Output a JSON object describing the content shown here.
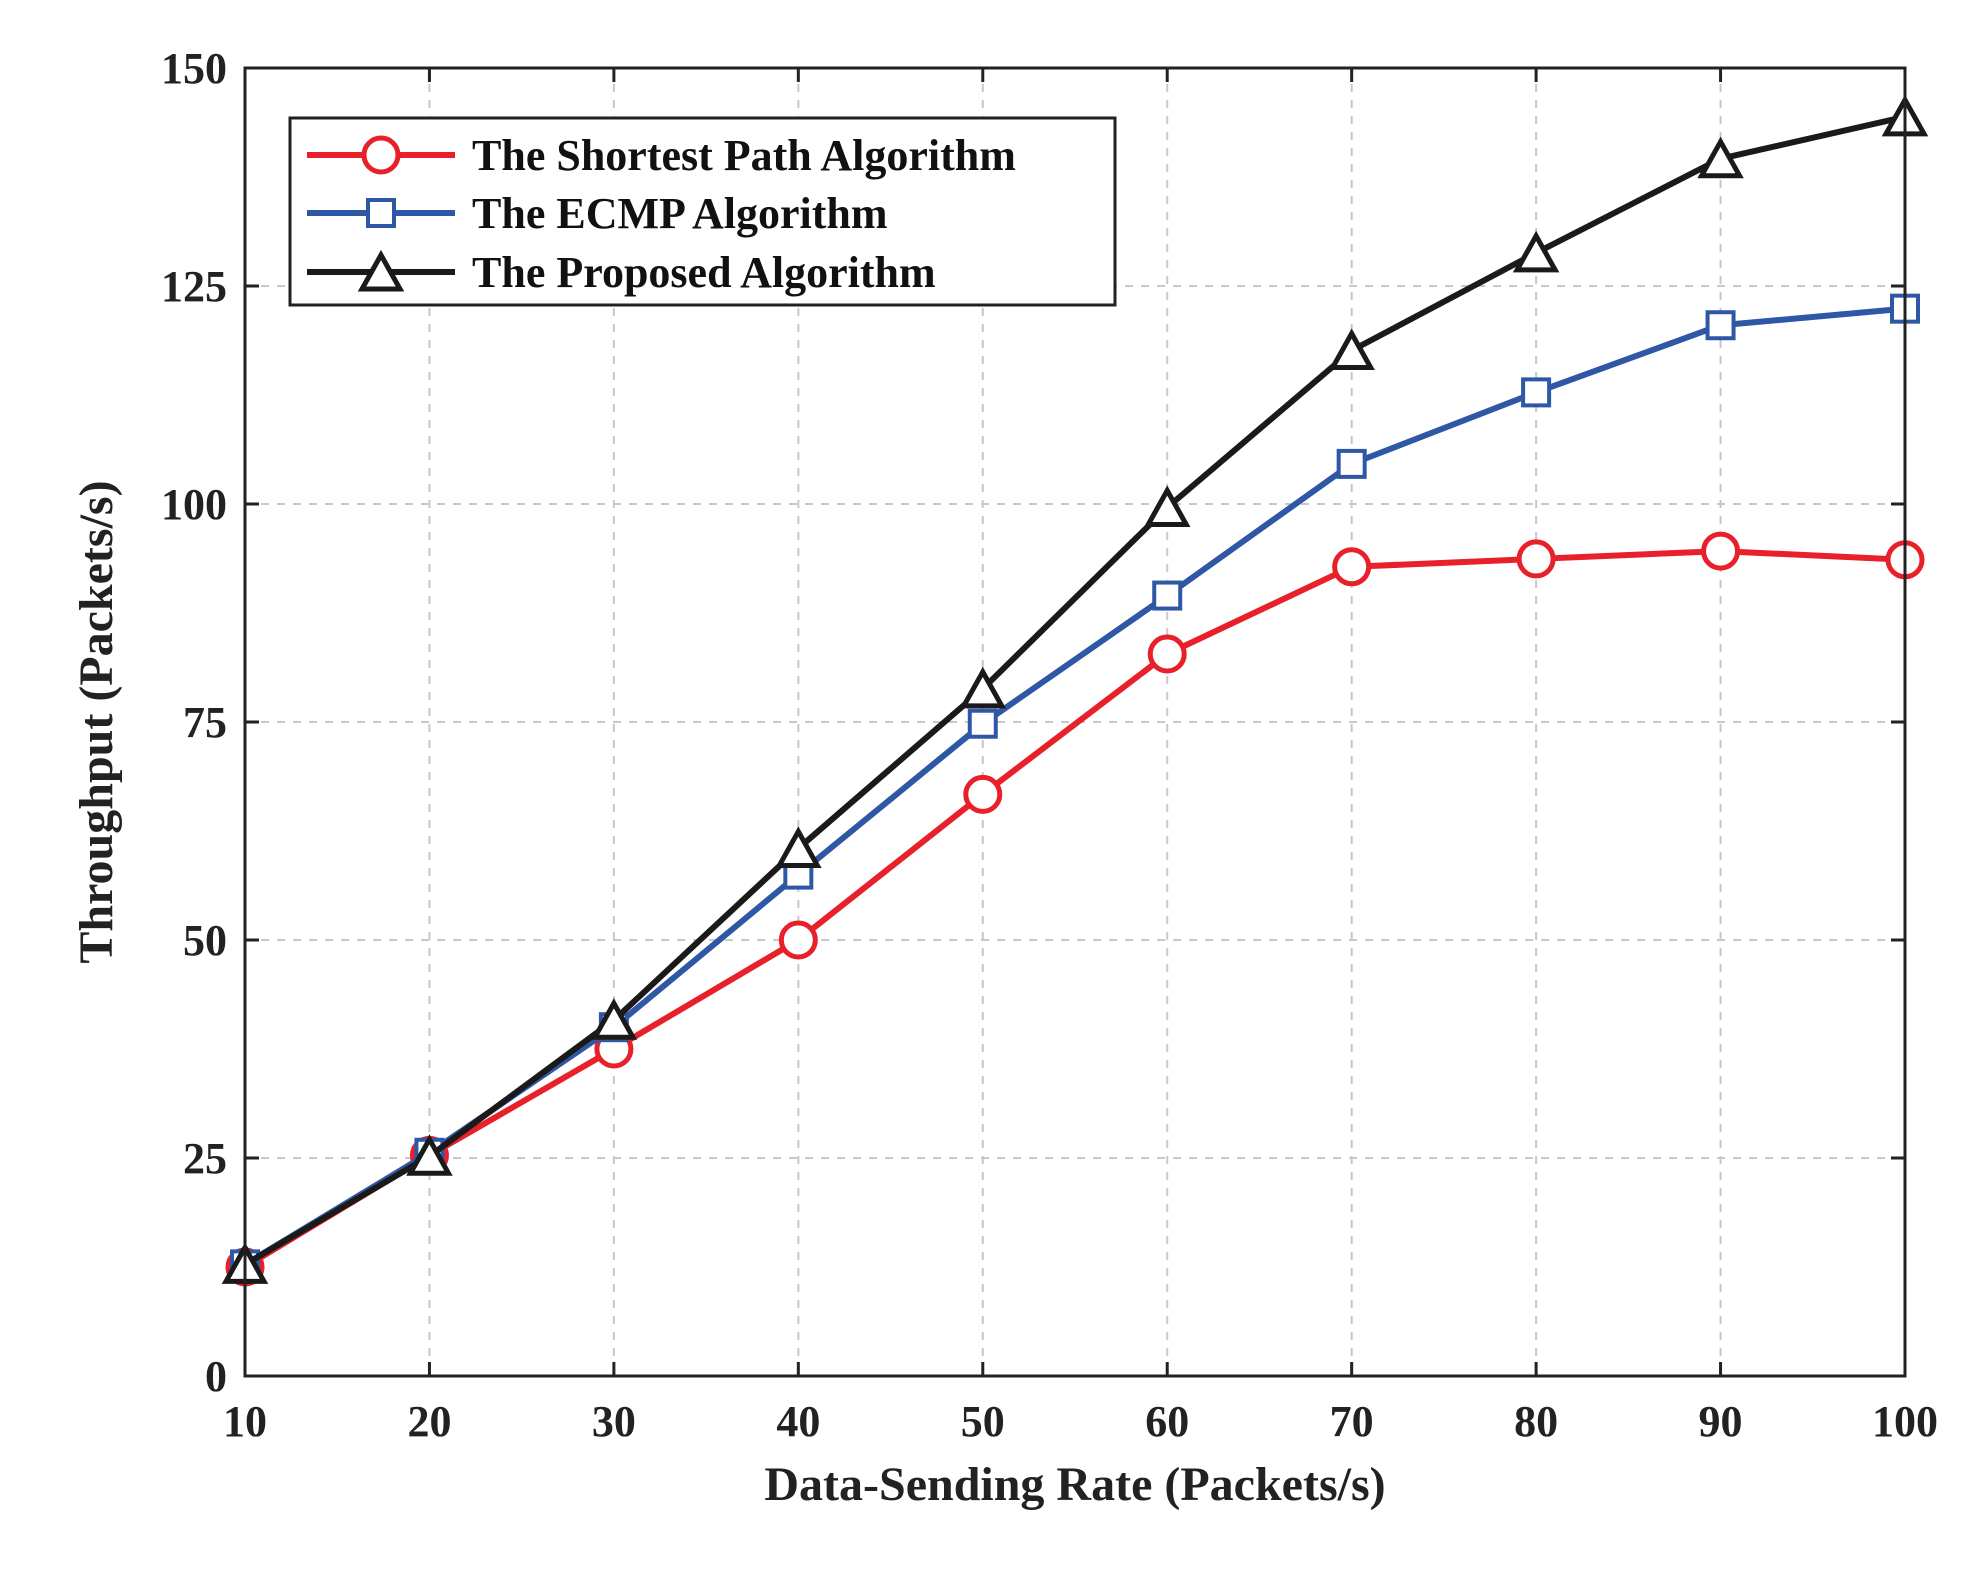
{
  "chart_data": {
    "type": "line",
    "xlabel": "Data-Sending Rate (Packets/s)",
    "ylabel": "Throughput (Packets/s)",
    "x": [
      10,
      20,
      30,
      40,
      50,
      60,
      70,
      80,
      90,
      100
    ],
    "xlim": [
      10,
      100
    ],
    "ylim": [
      0,
      150
    ],
    "xticks": [
      10,
      20,
      30,
      40,
      50,
      60,
      70,
      80,
      90,
      100
    ],
    "yticks": [
      0,
      25,
      50,
      75,
      100,
      125,
      150
    ],
    "grid": true,
    "legend_position": "top-left",
    "series": [
      {
        "name": "The Shortest Path Algorithm",
        "color": "#e8202a",
        "marker": "circle",
        "values": [
          12.5,
          25.3,
          37.5,
          50.0,
          66.7,
          82.8,
          92.8,
          93.7,
          94.6,
          93.6
        ]
      },
      {
        "name": "The ECMP Algorithm",
        "color": "#2e57a6",
        "marker": "square",
        "values": [
          12.8,
          25.6,
          40.0,
          57.5,
          74.8,
          89.5,
          104.6,
          112.8,
          120.5,
          122.4
        ]
      },
      {
        "name": "The Proposed Algorithm",
        "color": "#1a1a1a",
        "marker": "triangle",
        "values": [
          12.8,
          25.2,
          40.8,
          60.5,
          78.8,
          99.6,
          117.6,
          128.8,
          139.6,
          144.4
        ]
      }
    ]
  }
}
